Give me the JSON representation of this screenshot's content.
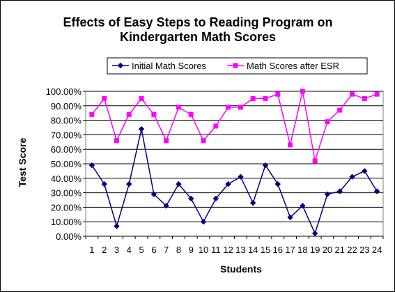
{
  "chart_data": {
    "type": "line",
    "title": [
      "Effects of Easy Steps to Reading Program on",
      "Kindergarten Math Scores"
    ],
    "xlabel": "Students",
    "ylabel": "Test Score",
    "x": [
      1,
      2,
      3,
      4,
      5,
      6,
      7,
      8,
      9,
      10,
      11,
      12,
      13,
      14,
      15,
      16,
      17,
      18,
      19,
      20,
      21,
      22,
      23,
      24
    ],
    "ylim": [
      0,
      1
    ],
    "yticks": [
      "0.00%",
      "10.00%",
      "20.00%",
      "30.00%",
      "40.00%",
      "50.00%",
      "60.00%",
      "70.00%",
      "80.00%",
      "90.00%",
      "100.00%"
    ],
    "grid": "horizontal",
    "legend_position": "top",
    "series": [
      {
        "name": "Initial Math Scores",
        "color": "#000080",
        "marker": "diamond",
        "values": [
          0.49,
          0.36,
          0.07,
          0.36,
          0.74,
          0.29,
          0.21,
          0.36,
          0.26,
          0.1,
          0.26,
          0.36,
          0.41,
          0.23,
          0.49,
          0.36,
          0.13,
          0.21,
          0.02,
          0.29,
          0.31,
          0.41,
          0.45,
          0.31
        ]
      },
      {
        "name": "Math Scores after ESR",
        "color": "#ff00ff",
        "marker": "square",
        "values": [
          0.84,
          0.95,
          0.66,
          0.84,
          0.95,
          0.84,
          0.66,
          0.89,
          0.84,
          0.66,
          0.76,
          0.89,
          0.89,
          0.95,
          0.95,
          0.98,
          0.63,
          1.0,
          0.52,
          0.79,
          0.87,
          0.98,
          0.95,
          0.98
        ]
      }
    ]
  }
}
